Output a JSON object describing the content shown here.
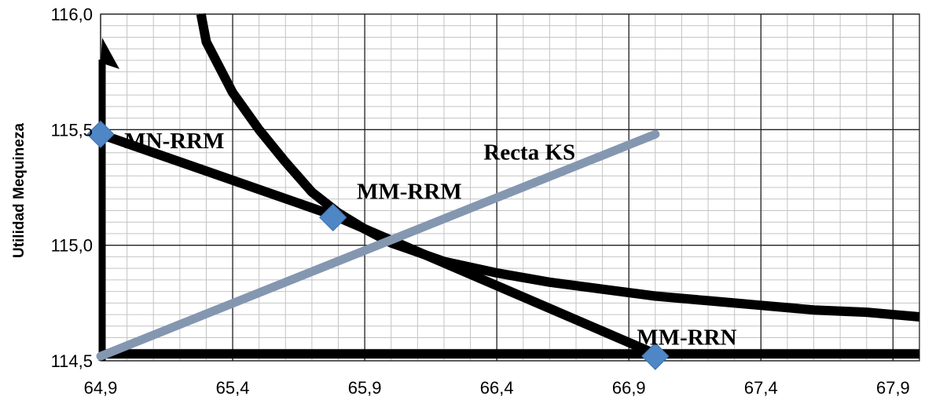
{
  "chart_data": {
    "type": "line",
    "title": "",
    "xlabel": "",
    "ylabel": "Utilidad Mequineza",
    "xlim": [
      64.9,
      68.0
    ],
    "ylim": [
      114.5,
      116.0
    ],
    "x_ticks": [
      "64,9",
      "65,4",
      "65,9",
      "66,4",
      "66,9",
      "67,4",
      "67,9"
    ],
    "y_ticks": [
      "114,5",
      "115,0",
      "115,5",
      "116,0"
    ],
    "grid": true,
    "legend": "none",
    "series": [
      {
        "type": "line",
        "color": "#000000",
        "points": [
          [
            64.9,
            115.48
          ],
          [
            65.78,
            115.13
          ],
          [
            67.0,
            114.53
          ]
        ]
      },
      {
        "type": "line",
        "color": "#000000",
        "points": [
          [
            64.9,
            114.53
          ],
          [
            68.0,
            114.53
          ]
        ]
      },
      {
        "type": "curve",
        "color": "#000000",
        "points": [
          [
            65.28,
            116.0
          ],
          [
            65.3,
            115.88
          ],
          [
            65.4,
            115.66
          ],
          [
            65.5,
            115.5
          ],
          [
            65.6,
            115.36
          ],
          [
            65.7,
            115.23
          ],
          [
            65.8,
            115.14
          ],
          [
            65.9,
            115.07
          ],
          [
            66.0,
            115.01
          ],
          [
            66.2,
            114.93
          ],
          [
            66.4,
            114.88
          ],
          [
            66.6,
            114.84
          ],
          [
            66.8,
            114.81
          ],
          [
            67.0,
            114.78
          ],
          [
            67.2,
            114.76
          ],
          [
            67.4,
            114.74
          ],
          [
            67.6,
            114.72
          ],
          [
            67.8,
            114.71
          ],
          [
            68.0,
            114.69
          ]
        ]
      },
      {
        "type": "line",
        "name": "Recta KS",
        "color": "#8497b0",
        "points": [
          [
            64.9,
            114.52
          ],
          [
            67.0,
            115.48
          ]
        ]
      }
    ],
    "markers": [
      {
        "label": "MN-RRM",
        "x": 64.9,
        "y": 115.48,
        "color": "#4f86c6"
      },
      {
        "label": "MM-RRM",
        "x": 65.78,
        "y": 115.12,
        "color": "#4f86c6"
      },
      {
        "label": "MM-RRN",
        "x": 67.0,
        "y": 114.52,
        "color": "#4f86c6"
      }
    ],
    "annotations": [
      {
        "text": "MN-RRM",
        "x": 64.99,
        "y": 115.42
      },
      {
        "text": "MM-RRM",
        "x": 65.87,
        "y": 115.2
      },
      {
        "text": "Recta KS",
        "x": 66.35,
        "y": 115.37
      },
      {
        "text": "MM-RRN",
        "x": 66.93,
        "y": 114.57
      }
    ]
  }
}
